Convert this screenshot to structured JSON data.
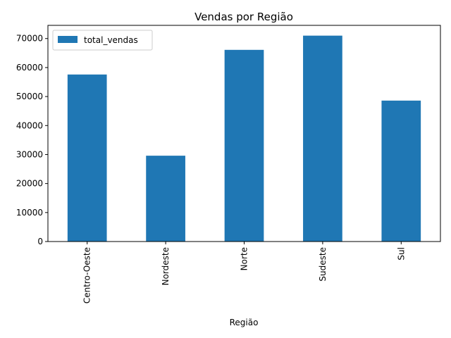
{
  "chart_data": {
    "type": "bar",
    "title": "Vendas por Região",
    "xlabel": "Região",
    "ylabel": "",
    "categories": [
      "Centro-Oeste",
      "Nordeste",
      "Norte",
      "Sudeste",
      "Sul"
    ],
    "series": [
      {
        "name": "total_vendas",
        "color": "#1f77b4",
        "values": [
          57600,
          29600,
          66100,
          71000,
          48600
        ]
      }
    ],
    "ylim": [
      0,
      74550
    ],
    "yticks": [
      0,
      10000,
      20000,
      30000,
      40000,
      50000,
      60000,
      70000
    ],
    "legend": "top-left",
    "grid": false
  }
}
